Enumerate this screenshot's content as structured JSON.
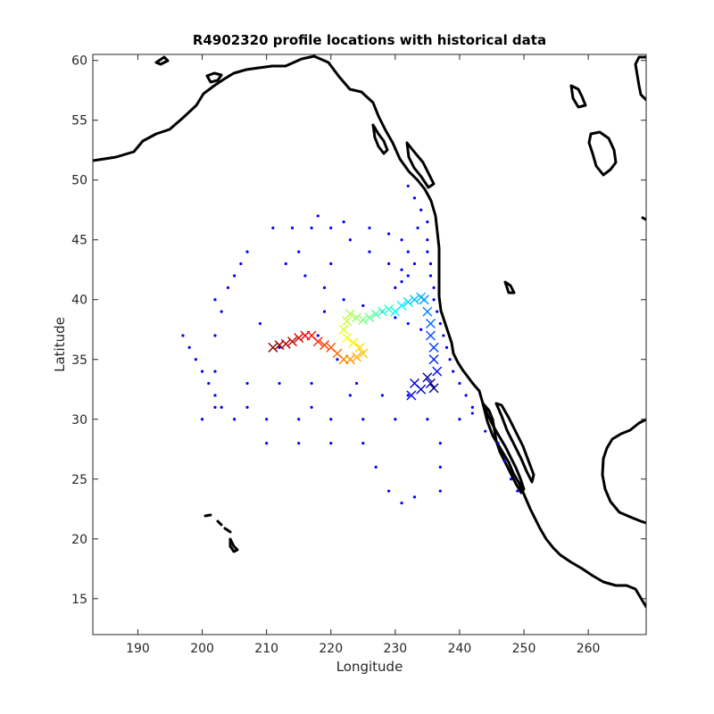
{
  "chart_data": {
    "type": "scatter",
    "title": "R4902320 profile locations with historical data",
    "xlabel": "Longitude",
    "ylabel": "Latitude",
    "xlim": [
      183,
      269
    ],
    "ylim": [
      12,
      60.5
    ],
    "xticks": [
      190,
      200,
      210,
      220,
      230,
      240,
      250,
      260
    ],
    "yticks": [
      15,
      20,
      25,
      30,
      35,
      40,
      45,
      50,
      55,
      60
    ],
    "grid": false,
    "legend": "none",
    "colors": {
      "historical": "#0000ff",
      "coastline": "#000000",
      "float_track_colormap": [
        "#00008f",
        "#0000ff",
        "#00ffff",
        "#80ff80",
        "#ffff00",
        "#ff8000",
        "#ff0000",
        "#800000"
      ]
    },
    "series": [
      {
        "marker": "dot",
        "points": [
          [
            232,
            49.5
          ],
          [
            233,
            48.5
          ],
          [
            234,
            47.5
          ],
          [
            235,
            46.5
          ],
          [
            233.5,
            46
          ],
          [
            235,
            45
          ],
          [
            235,
            44
          ],
          [
            235.5,
            43
          ],
          [
            235.5,
            42
          ],
          [
            236,
            41
          ],
          [
            236,
            40
          ],
          [
            236.5,
            39
          ],
          [
            237,
            38
          ],
          [
            237.5,
            37
          ],
          [
            238,
            36
          ],
          [
            238.5,
            35
          ],
          [
            239,
            34
          ],
          [
            240,
            33
          ],
          [
            241,
            32
          ],
          [
            242,
            31
          ],
          [
            218,
            47
          ],
          [
            222,
            46.5
          ],
          [
            226,
            46
          ],
          [
            229,
            45.5
          ],
          [
            231,
            45
          ],
          [
            232,
            44
          ],
          [
            233,
            43
          ],
          [
            232,
            42
          ],
          [
            231,
            41.5
          ],
          [
            230,
            41
          ],
          [
            213,
            43
          ],
          [
            216,
            42
          ],
          [
            219,
            41
          ],
          [
            222,
            40
          ],
          [
            225,
            39.5
          ],
          [
            228,
            39
          ],
          [
            230,
            38.5
          ],
          [
            232,
            38
          ],
          [
            234,
            37.5
          ],
          [
            211,
            46
          ],
          [
            214,
            46
          ],
          [
            217,
            46
          ],
          [
            220,
            46
          ],
          [
            223,
            45
          ],
          [
            226,
            44
          ],
          [
            229,
            43
          ],
          [
            231,
            42.5
          ],
          [
            202,
            40
          ],
          [
            202,
            37
          ],
          [
            202,
            34
          ],
          [
            202,
            31
          ],
          [
            203,
            39
          ],
          [
            204,
            41
          ],
          [
            205,
            42
          ],
          [
            206,
            43
          ],
          [
            207,
            44
          ],
          [
            197,
            37
          ],
          [
            198,
            36
          ],
          [
            199,
            35
          ],
          [
            200,
            34
          ],
          [
            201,
            33
          ],
          [
            202,
            32
          ],
          [
            203,
            31
          ],
          [
            200,
            30
          ],
          [
            205,
            30
          ],
          [
            210,
            30
          ],
          [
            215,
            30
          ],
          [
            220,
            30
          ],
          [
            225,
            30
          ],
          [
            230,
            30
          ],
          [
            235,
            30
          ],
          [
            240,
            30
          ],
          [
            207,
            33
          ],
          [
            212,
            33
          ],
          [
            217,
            33
          ],
          [
            207,
            31
          ],
          [
            217,
            31
          ],
          [
            223,
            32
          ],
          [
            228,
            32
          ],
          [
            232,
            32
          ],
          [
            210,
            28
          ],
          [
            215,
            28
          ],
          [
            220,
            28
          ],
          [
            225,
            28
          ],
          [
            227,
            26
          ],
          [
            229,
            24
          ],
          [
            231,
            23
          ],
          [
            233,
            23.5
          ],
          [
            237,
            24
          ],
          [
            237,
            26
          ],
          [
            237,
            28
          ],
          [
            242,
            30.5
          ],
          [
            244,
            29
          ],
          [
            246,
            28
          ],
          [
            247,
            26.5
          ],
          [
            248,
            25
          ],
          [
            249,
            24
          ],
          [
            218,
            37
          ],
          [
            221,
            35
          ],
          [
            224,
            33
          ],
          [
            219,
            39
          ],
          [
            212,
            36
          ],
          [
            209,
            38
          ],
          [
            215,
            44
          ],
          [
            220,
            43
          ]
        ]
      },
      {
        "marker": "cross",
        "colormap": "jet",
        "points": [
          [
            236,
            32.6
          ],
          [
            235.5,
            33
          ],
          [
            235,
            33.5
          ],
          [
            234,
            32.5
          ],
          [
            233,
            33
          ],
          [
            232.5,
            32
          ],
          [
            236.5,
            34
          ],
          [
            236,
            35
          ],
          [
            236,
            36
          ],
          [
            235.5,
            37
          ],
          [
            235.5,
            38
          ],
          [
            235,
            39
          ],
          [
            234.5,
            40
          ],
          [
            234,
            40.2
          ],
          [
            233,
            40
          ],
          [
            232,
            39.8
          ],
          [
            231,
            39.5
          ],
          [
            230,
            39
          ],
          [
            229,
            39.2
          ],
          [
            228,
            39
          ],
          [
            227,
            38.8
          ],
          [
            226,
            38.5
          ],
          [
            225,
            38.3
          ],
          [
            224,
            38.5
          ],
          [
            223,
            38.8
          ],
          [
            222.5,
            38.2
          ],
          [
            222,
            37.5
          ],
          [
            222.5,
            36.8
          ],
          [
            223.5,
            36.4
          ],
          [
            224.5,
            36
          ],
          [
            225,
            35.5
          ],
          [
            224,
            35.2
          ],
          [
            223,
            35
          ],
          [
            222,
            35
          ],
          [
            221,
            35.5
          ],
          [
            220,
            36
          ],
          [
            219,
            36.2
          ],
          [
            218,
            36.5
          ],
          [
            217,
            37
          ],
          [
            216,
            37
          ],
          [
            215,
            36.8
          ],
          [
            214,
            36.5
          ],
          [
            213,
            36.3
          ],
          [
            212,
            36.2
          ],
          [
            211,
            36
          ]
        ]
      }
    ]
  }
}
